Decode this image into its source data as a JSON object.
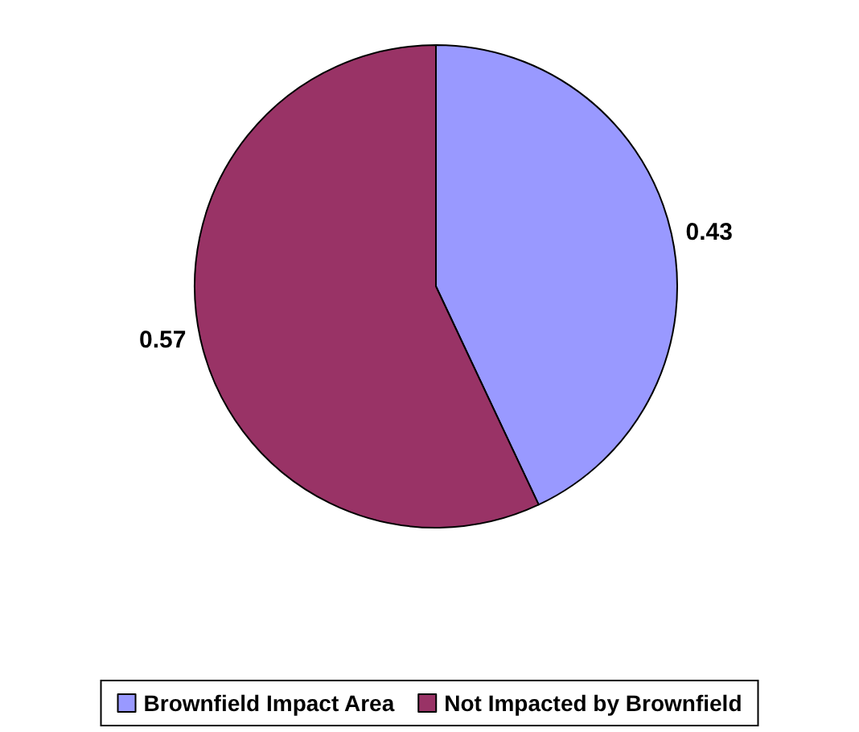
{
  "chart_data": {
    "type": "pie",
    "categories": [
      "Brownfield Impact Area",
      "Not Impacted by Brownfield"
    ],
    "values": [
      0.43,
      0.57
    ],
    "colors": [
      "#9999ff",
      "#993366"
    ],
    "data_labels": true,
    "legend": "bottom"
  }
}
